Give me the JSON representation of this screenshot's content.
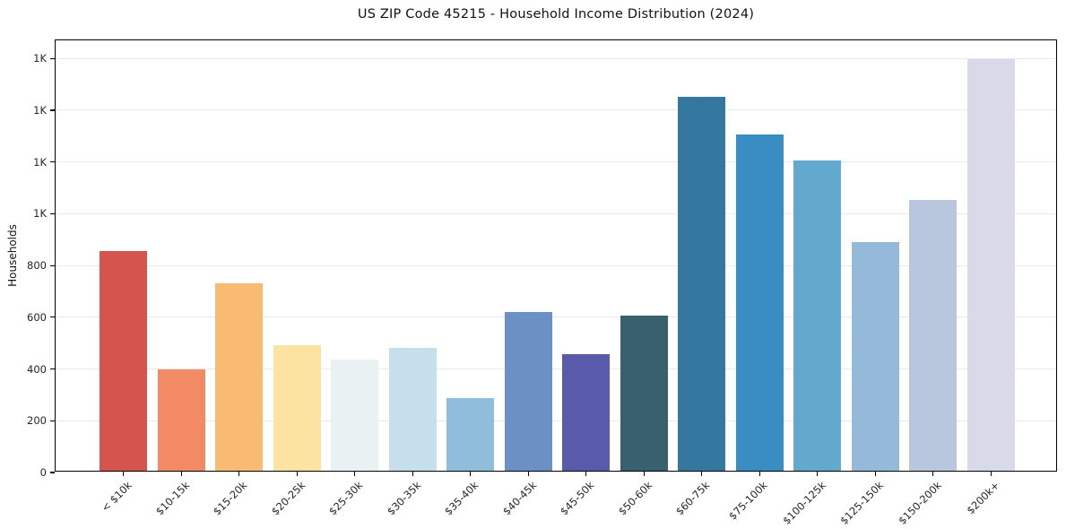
{
  "figure": {
    "title": "US ZIP Code 45215 - Household Income Distribution (2024)",
    "background_color": "#ffffff"
  },
  "chart_data": {
    "type": "bar",
    "title": "US ZIP Code 45215 - Household Income Distribution (2024)",
    "xlabel": "",
    "ylabel": "Households",
    "ylim": [
      0,
      1670
    ],
    "grid": "horizontal-only",
    "grid_color": "#e9e9f0",
    "spine_color": "#000000",
    "legend_position": "none",
    "categories": [
      "< $10k",
      "$10-15k",
      "$15-20k",
      "$20-25k",
      "$25-30k",
      "$30-35k",
      "$35-40k",
      "$40-45k",
      "$45-50k",
      "$50-60k",
      "$60-75k",
      "$75-100k",
      "$100-125k",
      "$125-150k",
      "$150-200k",
      "$200k+"
    ],
    "values": [
      850,
      390,
      725,
      485,
      430,
      475,
      280,
      615,
      450,
      600,
      1445,
      1300,
      1200,
      885,
      1045,
      1590
    ],
    "bar_colors": [
      "#d6544e",
      "#f28a66",
      "#f9ba72",
      "#fce3a1",
      "#e9f1f3",
      "#c5e0ec",
      "#90bddb",
      "#6b90c4",
      "#5a5aaa",
      "#38606d",
      "#35789f",
      "#3a8dc2",
      "#63a9cd",
      "#95b9d8",
      "#b9c7de",
      "#d8dae7"
    ],
    "yticks": [
      {
        "value": 0,
        "label": "0"
      },
      {
        "value": 200,
        "label": "200"
      },
      {
        "value": 400,
        "label": "400"
      },
      {
        "value": 600,
        "label": "600"
      },
      {
        "value": 800,
        "label": "800"
      },
      {
        "value": 1000,
        "label": "1K"
      },
      {
        "value": 1200,
        "label": "1K"
      },
      {
        "value": 1400,
        "label": "1K"
      },
      {
        "value": 1600,
        "label": "1K"
      }
    ]
  }
}
